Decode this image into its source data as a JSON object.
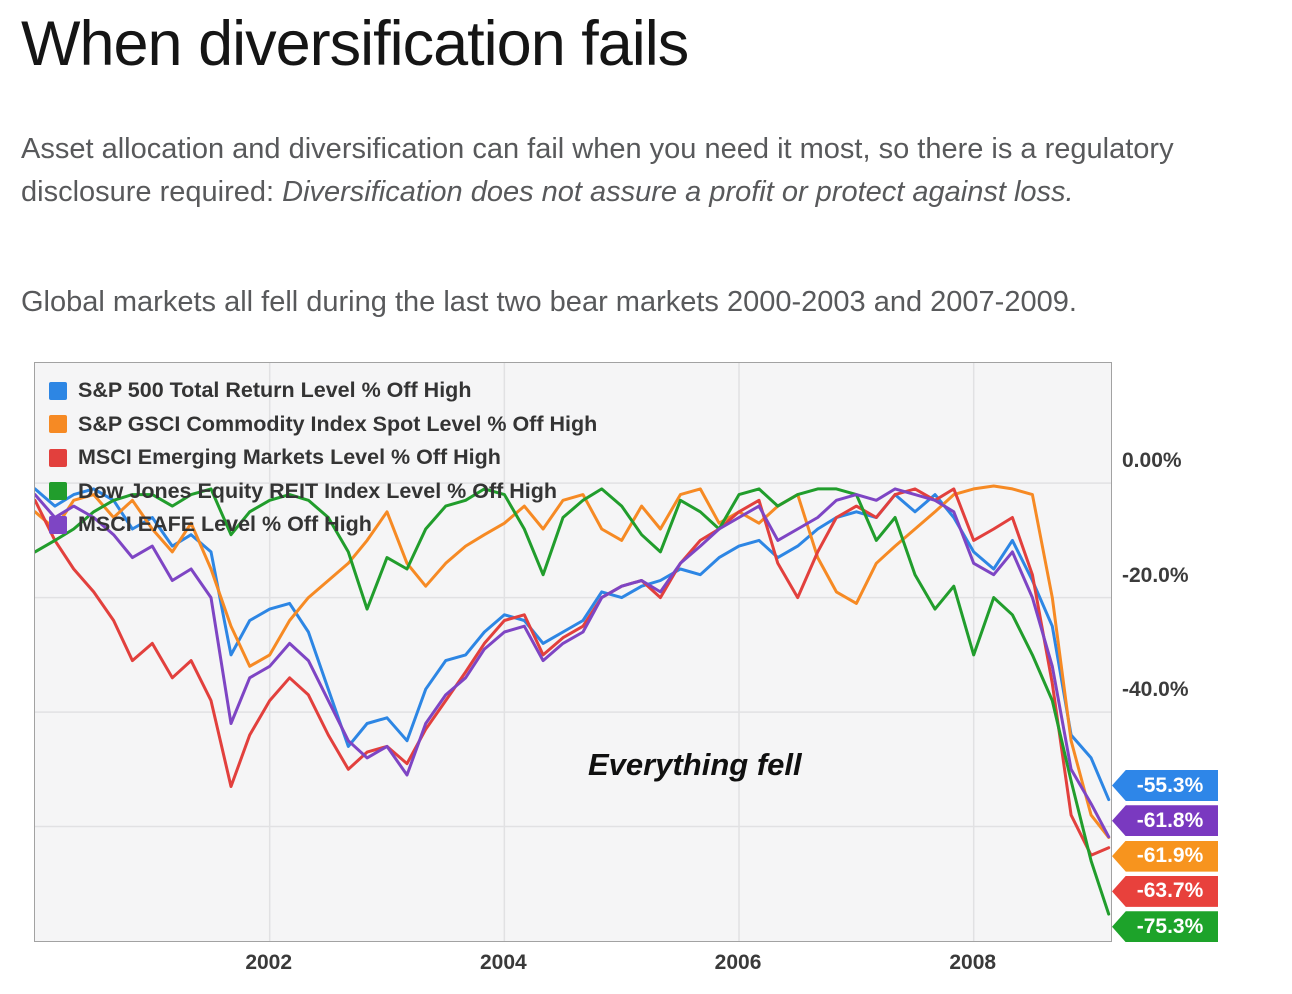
{
  "page": {
    "title": "When diversification fails",
    "paragraph1_normal": "Asset allocation and diversification can fail when you need it most, so there is a regulatory disclosure required: ",
    "paragraph1_italic": "Diversification does not assure a profit or protect against loss.",
    "paragraph2": "Global markets all fell during the last two bear markets 2000-2003 and 2007-2009."
  },
  "chart_data": {
    "type": "line",
    "title": "",
    "annotation": "Everything fell",
    "legend_position": "top-left",
    "grid": true,
    "plot_bg": "#f5f5f6",
    "gridline_color": "#e1e1e3",
    "xlim": [
      2000.0,
      2009.17
    ],
    "ylim": [
      -80,
      21
    ],
    "x_gridlines": [
      2002,
      2004,
      2006,
      2008
    ],
    "y_gridlines": [
      0,
      -20,
      -40,
      -60
    ],
    "x_tick_labels": [
      "2002",
      "2004",
      "2006",
      "2008"
    ],
    "y_tick_labels": [
      {
        "value": 0,
        "label": "0.00%"
      },
      {
        "value": -20,
        "label": "-20.0%"
      },
      {
        "value": -40,
        "label": "-40.0%"
      }
    ],
    "x": [
      2000.0,
      2000.17,
      2000.33,
      2000.5,
      2000.67,
      2000.83,
      2001.0,
      2001.17,
      2001.33,
      2001.5,
      2001.67,
      2001.83,
      2002.0,
      2002.17,
      2002.33,
      2002.5,
      2002.67,
      2002.83,
      2003.0,
      2003.17,
      2003.33,
      2003.5,
      2003.67,
      2003.83,
      2004.0,
      2004.17,
      2004.33,
      2004.5,
      2004.67,
      2004.83,
      2005.0,
      2005.17,
      2005.33,
      2005.5,
      2005.67,
      2005.83,
      2006.0,
      2006.17,
      2006.33,
      2006.5,
      2006.67,
      2006.83,
      2007.0,
      2007.17,
      2007.33,
      2007.5,
      2007.67,
      2007.83,
      2008.0,
      2008.17,
      2008.33,
      2008.5,
      2008.67,
      2008.83,
      2009.0,
      2009.15
    ],
    "series": [
      {
        "name": "S&P 500 Total Return Level % Off High",
        "color": "#2d86e4",
        "final_value": -55.3,
        "values": [
          -1,
          -4,
          -2,
          -1,
          -3,
          -8,
          -6,
          -11,
          -9,
          -12,
          -30,
          -24,
          -22,
          -21,
          -26,
          -36,
          -46,
          -42,
          -41,
          -45,
          -36,
          -31,
          -30,
          -26,
          -23,
          -24,
          -28,
          -26,
          -24,
          -19,
          -20,
          -18,
          -17,
          -15,
          -16,
          -13,
          -11,
          -10,
          -13,
          -11,
          -8,
          -6,
          -5,
          -6,
          -2,
          -5,
          -2,
          -6,
          -12,
          -15,
          -10,
          -17,
          -25,
          -44,
          -48,
          -55.3
        ]
      },
      {
        "name": "S&P GSCI Commodity Index Spot Level % Off High",
        "color": "#f68a24",
        "final_value": -61.9,
        "values": [
          -5,
          -8,
          -3,
          -2,
          -6,
          -3,
          -8,
          -12,
          -7,
          -15,
          -25,
          -32,
          -30,
          -24,
          -20,
          -17,
          -14,
          -10,
          -5,
          -14,
          -18,
          -14,
          -11,
          -9,
          -7,
          -4,
          -8,
          -3,
          -2,
          -8,
          -10,
          -4,
          -8,
          -2,
          -1,
          -7,
          -5,
          -7,
          -4,
          -2,
          -13,
          -19,
          -21,
          -14,
          -11,
          -8,
          -5,
          -2,
          -1,
          -0.5,
          -1,
          -2,
          -20,
          -45,
          -58,
          -61.9
        ]
      },
      {
        "name": "MSCI Emerging Markets Level % Off High",
        "color": "#e2403d",
        "final_value": -63.7,
        "values": [
          -3,
          -10,
          -15,
          -19,
          -24,
          -31,
          -28,
          -34,
          -31,
          -38,
          -53,
          -44,
          -38,
          -34,
          -37,
          -44,
          -50,
          -47,
          -46,
          -49,
          -43,
          -38,
          -33,
          -28,
          -24,
          -23,
          -30,
          -27,
          -25,
          -20,
          -18,
          -17,
          -20,
          -14,
          -10,
          -8,
          -5,
          -3,
          -14,
          -20,
          -12,
          -6,
          -4,
          -6,
          -2,
          -1,
          -3,
          -1,
          -10,
          -8,
          -6,
          -16,
          -35,
          -58,
          -65,
          -63.7
        ]
      },
      {
        "name": "Dow Jones Equity REIT Index Level % Off High",
        "color": "#219d2c",
        "final_value": -75.3,
        "values": [
          -12,
          -10,
          -8,
          -5,
          -3,
          -2,
          -2,
          -4,
          -2,
          -1,
          -9,
          -5,
          -3,
          -2,
          -3,
          -6,
          -12,
          -22,
          -13,
          -15,
          -8,
          -4,
          -3,
          -1,
          -2,
          -8,
          -16,
          -6,
          -3,
          -1,
          -4,
          -9,
          -12,
          -3,
          -5,
          -8,
          -2,
          -1,
          -4,
          -2,
          -1,
          -1,
          -2,
          -10,
          -6,
          -16,
          -22,
          -18,
          -30,
          -20,
          -23,
          -30,
          -38,
          -52,
          -66,
          -75.3
        ]
      },
      {
        "name": "MSCI EAFE Level % Off High",
        "color": "#7e45c4",
        "final_value": -61.8,
        "values": [
          -2,
          -6,
          -4,
          -6,
          -9,
          -13,
          -11,
          -17,
          -15,
          -20,
          -42,
          -34,
          -32,
          -28,
          -31,
          -38,
          -45,
          -48,
          -46,
          -51,
          -42,
          -37,
          -34,
          -29,
          -26,
          -25,
          -31,
          -28,
          -26,
          -20,
          -18,
          -17,
          -19,
          -14,
          -11,
          -8,
          -6,
          -4,
          -10,
          -8,
          -6,
          -3,
          -2,
          -3,
          -1,
          -2,
          -3,
          -5,
          -14,
          -16,
          -12,
          -20,
          -32,
          -50,
          -56,
          -61.8
        ]
      }
    ],
    "callouts": [
      {
        "label": "-55.3%",
        "color": "#2e86e8"
      },
      {
        "label": "-61.8%",
        "color": "#7a39c0"
      },
      {
        "label": "-61.9%",
        "color": "#f7941e"
      },
      {
        "label": "-63.7%",
        "color": "#e8413c"
      },
      {
        "label": "-75.3%",
        "color": "#1da32a"
      }
    ]
  }
}
